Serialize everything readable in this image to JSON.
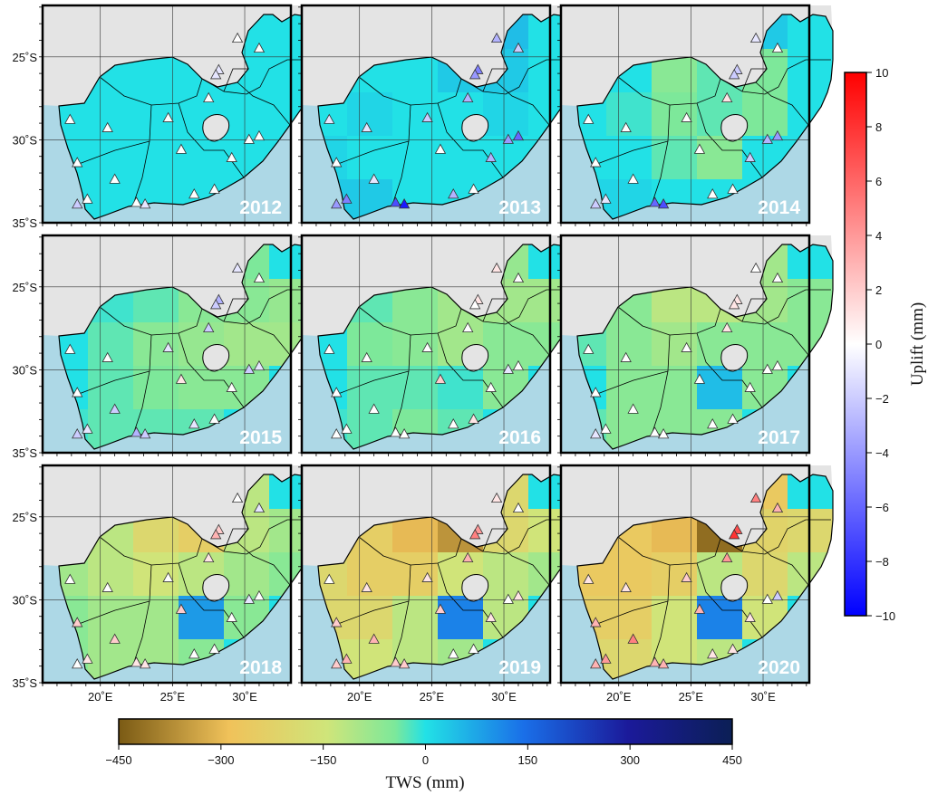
{
  "panels": [
    {
      "year": "2012",
      "tws": [
        [
          0,
          0,
          0,
          0,
          0,
          0
        ],
        [
          0,
          0,
          0,
          0,
          0,
          0
        ],
        [
          0,
          0,
          0,
          0,
          0,
          0
        ],
        [
          0,
          0,
          0,
          0,
          0,
          0
        ],
        [
          0,
          0,
          0,
          0,
          0,
          0
        ]
      ],
      "stations": [
        [
          18.4,
          -33.9,
          -2
        ],
        [
          19.1,
          -33.6,
          0
        ],
        [
          21,
          -32.4,
          0
        ],
        [
          22.5,
          -33.8,
          0
        ],
        [
          23.1,
          -33.9,
          -1
        ],
        [
          26.5,
          -33.3,
          0
        ],
        [
          27.9,
          -33.0,
          0
        ],
        [
          29.1,
          -31.1,
          0
        ],
        [
          30.3,
          -30.0,
          0
        ],
        [
          31.0,
          -29.8,
          0
        ],
        [
          28.2,
          -25.8,
          -1
        ],
        [
          28.0,
          -26.1,
          -1
        ],
        [
          29.5,
          -23.9,
          0
        ],
        [
          31.0,
          -24.5,
          0
        ],
        [
          27.5,
          -27.5,
          0
        ],
        [
          25.6,
          -30.6,
          0
        ],
        [
          24.7,
          -28.7,
          0
        ],
        [
          20.5,
          -29.3,
          0
        ],
        [
          17.9,
          -28.8,
          0
        ],
        [
          18.4,
          -31.4,
          0
        ]
      ]
    },
    {
      "year": "2013",
      "tws": [
        [
          0,
          0,
          15,
          45,
          45,
          0
        ],
        [
          0,
          0,
          0,
          30,
          30,
          0
        ],
        [
          0,
          15,
          0,
          0,
          15,
          0
        ],
        [
          15,
          0,
          0,
          0,
          0,
          0
        ],
        [
          30,
          30,
          0,
          0,
          0,
          0
        ]
      ],
      "stations": [
        [
          18.4,
          -33.9,
          -4
        ],
        [
          19.1,
          -33.6,
          -5
        ],
        [
          21,
          -32.4,
          -1
        ],
        [
          22.5,
          -33.8,
          -7
        ],
        [
          23.1,
          -33.9,
          -9
        ],
        [
          26.5,
          -33.3,
          -3
        ],
        [
          27.9,
          -33.0,
          0
        ],
        [
          29.1,
          -31.1,
          -3
        ],
        [
          30.3,
          -30.0,
          -4
        ],
        [
          31.0,
          -29.8,
          -6
        ],
        [
          28.2,
          -25.8,
          -5
        ],
        [
          28.0,
          -26.1,
          -4
        ],
        [
          29.5,
          -23.9,
          -3
        ],
        [
          31.0,
          -24.5,
          -2
        ],
        [
          27.5,
          -27.5,
          -3
        ],
        [
          25.6,
          -30.6,
          0
        ],
        [
          24.7,
          -28.7,
          -2
        ],
        [
          20.5,
          -29.3,
          -1
        ],
        [
          17.9,
          -28.8,
          -1
        ],
        [
          18.4,
          -31.4,
          0
        ]
      ]
    },
    {
      "year": "2014",
      "tws": [
        [
          0,
          0,
          -45,
          45,
          30,
          0
        ],
        [
          0,
          0,
          -60,
          -30,
          -45,
          0
        ],
        [
          0,
          -15,
          -45,
          -30,
          -45,
          0
        ],
        [
          0,
          0,
          -30,
          -60,
          0,
          0
        ],
        [
          15,
          15,
          0,
          0,
          0,
          0
        ]
      ],
      "stations": [
        [
          18.4,
          -33.9,
          -2
        ],
        [
          19.1,
          -33.6,
          -1
        ],
        [
          21,
          -32.4,
          0
        ],
        [
          22.5,
          -33.8,
          -6
        ],
        [
          23.1,
          -33.9,
          -7
        ],
        [
          26.5,
          -33.3,
          0
        ],
        [
          27.9,
          -33.0,
          0
        ],
        [
          29.1,
          -31.1,
          -2
        ],
        [
          30.3,
          -30.0,
          -3
        ],
        [
          31.0,
          -29.8,
          -4
        ],
        [
          28.2,
          -25.8,
          -2
        ],
        [
          28.0,
          -26.1,
          -2
        ],
        [
          29.5,
          -23.9,
          -1
        ],
        [
          31.0,
          -24.5,
          0
        ],
        [
          27.5,
          -27.5,
          1
        ],
        [
          25.6,
          -30.6,
          0
        ],
        [
          24.7,
          -28.7,
          0
        ],
        [
          20.5,
          -29.3,
          0
        ],
        [
          17.9,
          -28.8,
          0
        ],
        [
          18.4,
          -31.4,
          0
        ]
      ]
    },
    {
      "year": "2015",
      "tws": [
        [
          0,
          0,
          -45,
          -30,
          -45,
          0
        ],
        [
          0,
          -15,
          -30,
          -60,
          -60,
          -75
        ],
        [
          0,
          -30,
          -60,
          -75,
          -90,
          -90
        ],
        [
          0,
          -30,
          -45,
          -60,
          -60,
          0
        ],
        [
          -15,
          -30,
          -30,
          -30,
          0,
          0
        ]
      ],
      "stations": [
        [
          18.4,
          -33.9,
          -2
        ],
        [
          19.1,
          -33.6,
          -1
        ],
        [
          21,
          -32.4,
          -2
        ],
        [
          22.5,
          -33.8,
          -3
        ],
        [
          23.1,
          -33.9,
          -2
        ],
        [
          26.5,
          -33.3,
          -1
        ],
        [
          27.9,
          -33.0,
          0
        ],
        [
          29.1,
          -31.1,
          0
        ],
        [
          30.3,
          -30.0,
          -2
        ],
        [
          31.0,
          -29.8,
          -1
        ],
        [
          28.2,
          -25.8,
          -3
        ],
        [
          28.0,
          -26.1,
          -2
        ],
        [
          29.5,
          -23.9,
          -1
        ],
        [
          31.0,
          -24.5,
          0
        ],
        [
          27.5,
          -27.5,
          -2
        ],
        [
          25.6,
          -30.6,
          1
        ],
        [
          24.7,
          -28.7,
          -1
        ],
        [
          20.5,
          -29.3,
          0
        ],
        [
          17.9,
          -28.8,
          0
        ],
        [
          18.4,
          -31.4,
          0
        ]
      ]
    },
    {
      "year": "2016",
      "tws": [
        [
          0,
          0,
          -75,
          -90,
          -75,
          0
        ],
        [
          0,
          -30,
          -60,
          -90,
          -90,
          -90
        ],
        [
          0,
          -45,
          -60,
          -90,
          -60,
          -60
        ],
        [
          0,
          -30,
          -30,
          -15,
          -60,
          0
        ],
        [
          -15,
          -30,
          -45,
          -30,
          0,
          0
        ]
      ],
      "stations": [
        [
          18.4,
          -33.9,
          0
        ],
        [
          19.1,
          -33.6,
          0
        ],
        [
          21,
          -32.4,
          0
        ],
        [
          22.5,
          -33.8,
          0
        ],
        [
          23.1,
          -33.9,
          0
        ],
        [
          26.5,
          -33.3,
          0
        ],
        [
          27.9,
          -33.0,
          1
        ],
        [
          29.1,
          -31.1,
          0
        ],
        [
          30.3,
          -30.0,
          -1
        ],
        [
          31.0,
          -29.8,
          0
        ],
        [
          28.2,
          -25.8,
          1
        ],
        [
          28.0,
          -26.1,
          0
        ],
        [
          29.5,
          -23.9,
          1
        ],
        [
          31.0,
          -24.5,
          0
        ],
        [
          27.5,
          -27.5,
          0
        ],
        [
          25.6,
          -30.6,
          2
        ],
        [
          24.7,
          -28.7,
          0
        ],
        [
          20.5,
          -29.3,
          0
        ],
        [
          17.9,
          -28.8,
          0
        ],
        [
          18.4,
          -31.4,
          0
        ]
      ]
    },
    {
      "year": "2017",
      "tws": [
        [
          0,
          0,
          -150,
          -120,
          -90,
          0
        ],
        [
          -30,
          -60,
          -120,
          -120,
          -90,
          -60
        ],
        [
          -30,
          -60,
          -90,
          -60,
          -60,
          -60
        ],
        [
          0,
          -60,
          -60,
          45,
          -60,
          0
        ],
        [
          -30,
          -60,
          -60,
          -60,
          0,
          0
        ]
      ],
      "stations": [
        [
          18.4,
          -33.9,
          -1
        ],
        [
          19.1,
          -33.6,
          0
        ],
        [
          21,
          -32.4,
          0
        ],
        [
          22.5,
          -33.8,
          0
        ],
        [
          23.1,
          -33.9,
          0
        ],
        [
          26.5,
          -33.3,
          0
        ],
        [
          27.9,
          -33.0,
          0
        ],
        [
          29.1,
          -31.1,
          0
        ],
        [
          30.3,
          -30.0,
          0
        ],
        [
          31.0,
          -29.8,
          0
        ],
        [
          28.2,
          -25.8,
          1
        ],
        [
          28.0,
          -26.1,
          1
        ],
        [
          29.5,
          -23.9,
          0
        ],
        [
          31.0,
          -24.5,
          0
        ],
        [
          27.5,
          -27.5,
          1
        ],
        [
          25.6,
          -30.6,
          0
        ],
        [
          24.7,
          -28.7,
          0
        ],
        [
          20.5,
          -29.3,
          0
        ],
        [
          17.9,
          -28.8,
          0
        ],
        [
          18.4,
          -31.4,
          0
        ]
      ]
    },
    {
      "year": "2018",
      "tws": [
        [
          0,
          0,
          -300,
          -200,
          -120,
          0
        ],
        [
          -60,
          -120,
          -200,
          -240,
          -120,
          -90
        ],
        [
          -90,
          -120,
          -150,
          -120,
          -90,
          -60
        ],
        [
          -60,
          -90,
          -90,
          90,
          -60,
          0
        ],
        [
          -60,
          -90,
          -90,
          -60,
          0,
          0
        ]
      ],
      "stations": [
        [
          18.4,
          -33.9,
          0
        ],
        [
          19.1,
          -33.6,
          1
        ],
        [
          21,
          -32.4,
          2
        ],
        [
          22.5,
          -33.8,
          1
        ],
        [
          23.1,
          -33.9,
          1
        ],
        [
          26.5,
          -33.3,
          0
        ],
        [
          27.9,
          -33.0,
          0
        ],
        [
          29.1,
          -31.1,
          0
        ],
        [
          30.3,
          -30.0,
          -1
        ],
        [
          31.0,
          -29.8,
          0
        ],
        [
          28.2,
          -25.8,
          2
        ],
        [
          28.0,
          -26.1,
          3
        ],
        [
          29.5,
          -23.9,
          0
        ],
        [
          31.0,
          -24.5,
          -1
        ],
        [
          27.5,
          -27.5,
          1
        ],
        [
          25.6,
          -30.6,
          2
        ],
        [
          24.7,
          -28.7,
          0
        ],
        [
          20.5,
          -29.3,
          0
        ],
        [
          17.9,
          -28.8,
          0
        ],
        [
          18.4,
          -31.4,
          2
        ]
      ]
    },
    {
      "year": "2019",
      "tws": [
        [
          0,
          0,
          -400,
          -300,
          -200,
          0
        ],
        [
          -120,
          -240,
          -300,
          -360,
          -200,
          -150
        ],
        [
          -200,
          -240,
          -240,
          -150,
          -120,
          -90
        ],
        [
          -200,
          -200,
          -120,
          120,
          -120,
          0
        ],
        [
          -150,
          -150,
          -120,
          -90,
          0,
          0
        ]
      ],
      "stations": [
        [
          18.4,
          -33.9,
          2
        ],
        [
          19.1,
          -33.6,
          3
        ],
        [
          21,
          -32.4,
          3
        ],
        [
          22.5,
          -33.8,
          2
        ],
        [
          23.1,
          -33.9,
          2
        ],
        [
          26.5,
          -33.3,
          0
        ],
        [
          27.9,
          -33.0,
          0
        ],
        [
          29.1,
          -31.1,
          1
        ],
        [
          30.3,
          -30.0,
          0
        ],
        [
          31.0,
          -29.8,
          1
        ],
        [
          28.2,
          -25.8,
          4
        ],
        [
          28.0,
          -26.1,
          5
        ],
        [
          29.5,
          -23.9,
          1
        ],
        [
          31.0,
          -24.5,
          0
        ],
        [
          27.5,
          -27.5,
          3
        ],
        [
          25.6,
          -30.6,
          2
        ],
        [
          24.7,
          -28.7,
          1
        ],
        [
          20.5,
          -29.3,
          1
        ],
        [
          17.9,
          -28.8,
          0
        ],
        [
          18.4,
          -31.4,
          2
        ]
      ]
    },
    {
      "year": "2020",
      "tws": [
        [
          0,
          0,
          -380,
          -320,
          -260,
          0
        ],
        [
          -200,
          -260,
          -300,
          -420,
          -220,
          -200
        ],
        [
          -260,
          -260,
          -240,
          -120,
          -200,
          -120
        ],
        [
          -240,
          -240,
          -150,
          120,
          -150,
          0
        ],
        [
          -200,
          -200,
          -150,
          -120,
          0,
          0
        ]
      ],
      "stations": [
        [
          18.4,
          -33.9,
          3
        ],
        [
          19.1,
          -33.6,
          4
        ],
        [
          21,
          -32.4,
          5
        ],
        [
          22.5,
          -33.8,
          3
        ],
        [
          23.1,
          -33.9,
          3
        ],
        [
          26.5,
          -33.3,
          1
        ],
        [
          27.9,
          -33.0,
          1
        ],
        [
          29.1,
          -31.1,
          1
        ],
        [
          30.3,
          -30.0,
          0
        ],
        [
          31.0,
          -29.8,
          -2
        ],
        [
          28.2,
          -25.8,
          7
        ],
        [
          28.0,
          -26.1,
          8
        ],
        [
          29.5,
          -23.9,
          5
        ],
        [
          31.0,
          -24.5,
          3
        ],
        [
          27.5,
          -27.5,
          4
        ],
        [
          25.6,
          -30.6,
          3
        ],
        [
          24.7,
          -28.7,
          2
        ],
        [
          20.5,
          -29.3,
          1
        ],
        [
          17.9,
          -28.8,
          1
        ],
        [
          18.4,
          -31.4,
          3
        ]
      ]
    }
  ],
  "x_ticks": [
    "20˚E",
    "25˚E",
    "30˚E"
  ],
  "y_ticks": [
    "25˚S",
    "30˚S",
    "35˚S"
  ],
  "colorbar_uplift": {
    "title": "Uplift (mm)",
    "ticks": [
      "10",
      "8",
      "6",
      "4",
      "2",
      "0",
      "−2",
      "−4",
      "−6",
      "−8",
      "−10"
    ],
    "min": -10,
    "max": 10
  },
  "colorbar_tws": {
    "title": "TWS (mm)",
    "ticks": [
      "−450",
      "−300",
      "−150",
      "0",
      "150",
      "300",
      "450"
    ],
    "min": -450,
    "max": 450
  },
  "colors": {
    "sea": "#add8e6",
    "land_other": "#e4e4e4",
    "tws_stops": [
      "#7a5a14",
      "#f0c25a",
      "#cfe57a",
      "#7de89a",
      "#22e1e6",
      "#1a6fe8",
      "#1b1a9a",
      "#0b1f55"
    ],
    "uplift_stops": [
      "#0000ff",
      "#ffffff",
      "#ff0000"
    ]
  }
}
